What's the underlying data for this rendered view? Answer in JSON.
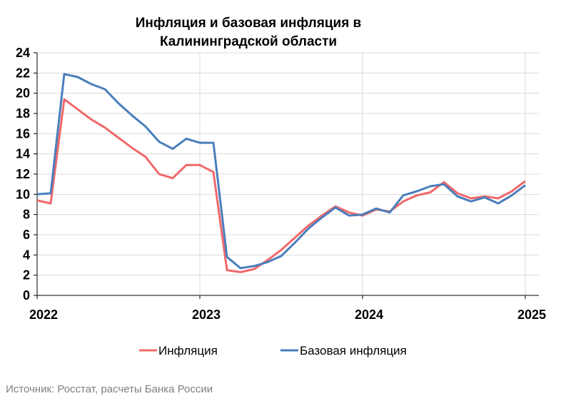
{
  "chart_data": {
    "type": "line",
    "title_lines": [
      "Инфляция и базовая инфляция в",
      "Калининградской области"
    ],
    "x_start": "2022-01",
    "x_tick_labels": [
      "2022",
      "2023",
      "2024",
      "2025"
    ],
    "ylim": [
      0,
      24
    ],
    "y_ticks": [
      0,
      2,
      4,
      6,
      8,
      10,
      12,
      14,
      16,
      18,
      20,
      22,
      24
    ],
    "grid": true,
    "legend_position": "bottom",
    "series": [
      {
        "name": "Инфляция",
        "color": "#f0686b",
        "values": [
          9.4,
          9.1,
          19.4,
          18.4,
          17.4,
          16.6,
          15.6,
          14.6,
          13.7,
          12.0,
          11.6,
          12.9,
          12.9,
          12.2,
          2.5,
          2.3,
          2.6,
          3.5,
          4.5,
          5.7,
          6.9,
          7.9,
          8.8,
          8.2,
          7.9,
          8.5,
          8.3,
          9.3,
          9.9,
          10.2,
          11.2,
          10.1,
          9.6,
          9.8,
          9.6,
          10.3,
          11.3
        ]
      },
      {
        "name": "Базовая инфляция",
        "color": "#4a7ebb",
        "values": [
          10.0,
          10.1,
          21.9,
          21.6,
          20.9,
          20.4,
          19.0,
          17.8,
          16.7,
          15.2,
          14.5,
          15.5,
          15.1,
          15.1,
          3.8,
          2.7,
          2.9,
          3.3,
          3.9,
          5.2,
          6.6,
          7.7,
          8.7,
          7.9,
          8.0,
          8.6,
          8.2,
          9.9,
          10.3,
          10.8,
          11.0,
          9.8,
          9.3,
          9.7,
          9.1,
          9.9,
          10.9
        ]
      }
    ]
  },
  "source_text": "Источник: Росстат, расчеты Банка России"
}
